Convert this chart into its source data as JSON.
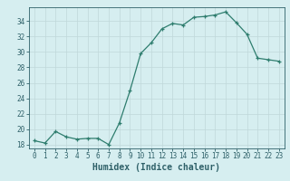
{
  "x": [
    0,
    1,
    2,
    3,
    4,
    5,
    6,
    7,
    8,
    9,
    10,
    11,
    12,
    13,
    14,
    15,
    16,
    17,
    18,
    19,
    20,
    21,
    22,
    23
  ],
  "y": [
    18.5,
    18.2,
    19.7,
    19.0,
    18.7,
    18.8,
    18.8,
    18.0,
    20.8,
    25.0,
    29.8,
    31.2,
    33.0,
    33.7,
    33.5,
    34.5,
    34.6,
    34.8,
    35.2,
    33.8,
    32.3,
    29.2,
    29.0,
    28.8
  ],
  "xlabel": "Humidex (Indice chaleur)",
  "bg_color": "#d6eef0",
  "line_color": "#2e7d6e",
  "marker_color": "#2e7d6e",
  "grid_color": "#c0d8da",
  "tick_label_color": "#2e6068",
  "ylim": [
    17.5,
    35.8
  ],
  "yticks": [
    18,
    20,
    22,
    24,
    26,
    28,
    30,
    32,
    34
  ],
  "xticks": [
    0,
    1,
    2,
    3,
    4,
    5,
    6,
    7,
    8,
    9,
    10,
    11,
    12,
    13,
    14,
    15,
    16,
    17,
    18,
    19,
    20,
    21,
    22,
    23
  ],
  "tick_fontsize": 5.5,
  "xlabel_fontsize": 7.0
}
